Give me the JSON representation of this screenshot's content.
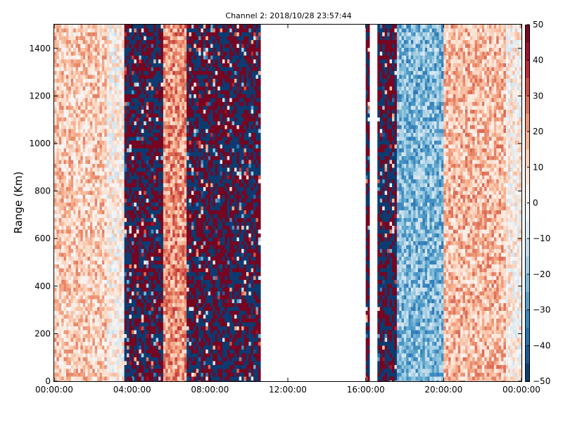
{
  "chart_data": {
    "type": "heatmap",
    "title": "Channel 2: 2018/10/28 23:57:44",
    "xlabel": "",
    "ylabel": "Range (Km)",
    "x_ticks": [
      "00:00:00",
      "04:00:00",
      "08:00:00",
      "12:00:00",
      "16:00:00",
      "20:00:00",
      "00:00:00"
    ],
    "x_range_hours": [
      0,
      24
    ],
    "y_ticks": [
      0,
      200,
      400,
      600,
      800,
      1000,
      1200,
      1400
    ],
    "ylim": [
      0,
      1500
    ],
    "colorbar": {
      "ticks": [
        50,
        40,
        30,
        20,
        10,
        0,
        -10,
        -20,
        -30,
        -40,
        -50
      ],
      "range": [
        -50,
        50
      ],
      "colormap": "RdBu_r",
      "low_color": "#053061",
      "high_color": "#67001f"
    },
    "regions": [
      {
        "hours": [
          0.0,
          2.7
        ],
        "pattern": "smooth",
        "mean": 12
      },
      {
        "hours": [
          2.7,
          3.6
        ],
        "pattern": "smooth",
        "mean": 2
      },
      {
        "hours": [
          3.6,
          5.6
        ],
        "pattern": "noise"
      },
      {
        "hours": [
          5.6,
          6.8
        ],
        "pattern": "smooth",
        "mean": 22
      },
      {
        "hours": [
          6.8,
          10.6
        ],
        "pattern": "noise"
      },
      {
        "hours": [
          10.6,
          16.0
        ],
        "pattern": "empty"
      },
      {
        "hours": [
          16.0,
          16.2
        ],
        "pattern": "noise"
      },
      {
        "hours": [
          16.2,
          16.6
        ],
        "pattern": "empty"
      },
      {
        "hours": [
          16.6,
          17.6
        ],
        "pattern": "noise"
      },
      {
        "hours": [
          17.6,
          20.0
        ],
        "pattern": "smooth",
        "mean": -22
      },
      {
        "hours": [
          20.0,
          23.2
        ],
        "pattern": "smooth",
        "mean": 15
      },
      {
        "hours": [
          23.2,
          24.0
        ],
        "pattern": "smooth",
        "mean": 3
      }
    ]
  }
}
